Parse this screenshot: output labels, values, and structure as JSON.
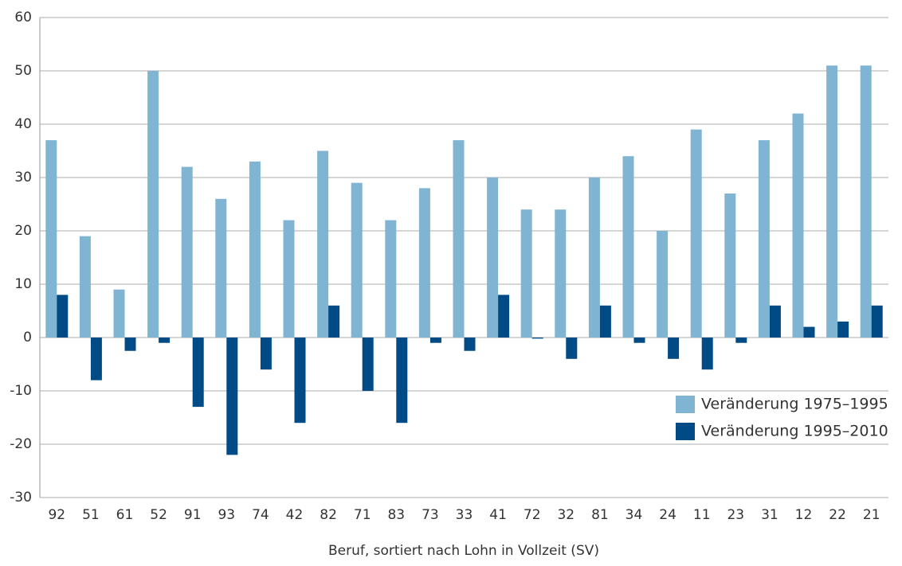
{
  "chart_data": {
    "type": "bar",
    "x_label": "Beruf, sortiert nach Lohn in Vollzeit (SV)",
    "categories": [
      "92",
      "51",
      "61",
      "52",
      "91",
      "93",
      "74",
      "42",
      "82",
      "71",
      "83",
      "73",
      "33",
      "41",
      "72",
      "32",
      "81",
      "34",
      "24",
      "11",
      "23",
      "31",
      "12",
      "22",
      "21"
    ],
    "series": [
      {
        "name": "Veränderung 1975–1995",
        "color": "#7fb5d3",
        "values": [
          37,
          19,
          9,
          50,
          32,
          26,
          33,
          22,
          35,
          29,
          22,
          28,
          37,
          30,
          24,
          24,
          30,
          34,
          20,
          39,
          27,
          37,
          42,
          51,
          51
        ]
      },
      {
        "name": "Veränderung 1995–2010",
        "color": "#004a85",
        "values": [
          8,
          -8,
          -2.5,
          -1,
          -13,
          -22,
          -6,
          -16,
          6,
          -10,
          -16,
          -1,
          -2.5,
          8,
          -0.2,
          -4,
          6,
          -1,
          -4,
          -6,
          -1,
          6,
          2,
          3,
          6
        ]
      }
    ],
    "ylim": [
      -30,
      60
    ],
    "yticks": [
      -30,
      -20,
      -10,
      0,
      10,
      20,
      30,
      40,
      50,
      60
    ],
    "grid": true,
    "legend": "lower right"
  }
}
